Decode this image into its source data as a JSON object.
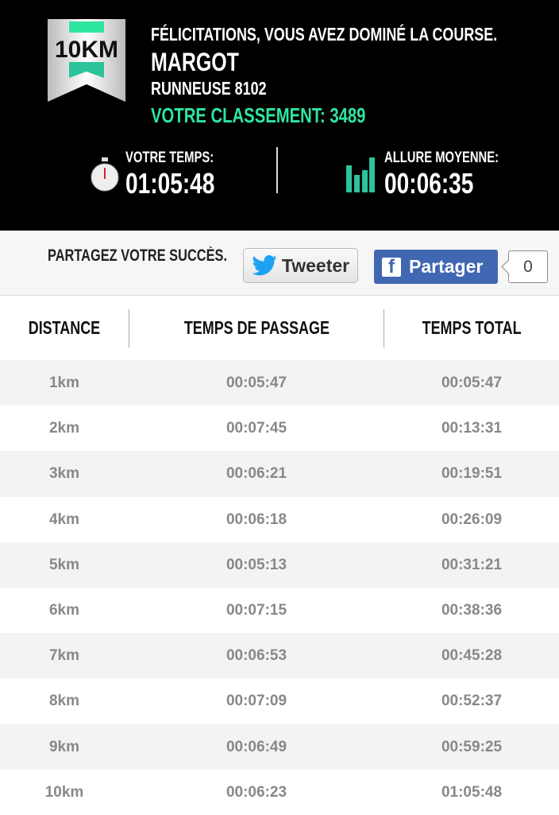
{
  "header": {
    "badge_text": "10KM",
    "congrats": "FÉLICITATIONS, VOUS AVEZ DOMINÉ LA COURSE.",
    "name": "MARGOT",
    "runner": "RUNNEUSE 8102",
    "ranking": "VOTRE CLASSEMENT: 3489",
    "time_label": "VOTRE TEMPS:",
    "time_value": "01:05:48",
    "pace_label": "ALLURE MOYENNE:",
    "pace_value": "00:06:35",
    "accent": "#2ee6a0"
  },
  "share": {
    "text": "PARTAGEZ VOTRE SUCCÈS.",
    "tweet": "Tweeter",
    "facebook": "Partager",
    "count": "0"
  },
  "table": {
    "headers": [
      "DISTANCE",
      "TEMPS DE PASSAGE",
      "TEMPS TOTAL"
    ],
    "rows": [
      [
        "1km",
        "00:05:47",
        "00:05:47"
      ],
      [
        "2km",
        "00:07:45",
        "00:13:31"
      ],
      [
        "3km",
        "00:06:21",
        "00:19:51"
      ],
      [
        "4km",
        "00:06:18",
        "00:26:09"
      ],
      [
        "5km",
        "00:05:13",
        "00:31:21"
      ],
      [
        "6km",
        "00:07:15",
        "00:38:36"
      ],
      [
        "7km",
        "00:06:53",
        "00:45:28"
      ],
      [
        "8km",
        "00:07:09",
        "00:52:37"
      ],
      [
        "9km",
        "00:06:49",
        "00:59:25"
      ],
      [
        "10km",
        "00:06:23",
        "01:05:48"
      ]
    ]
  }
}
